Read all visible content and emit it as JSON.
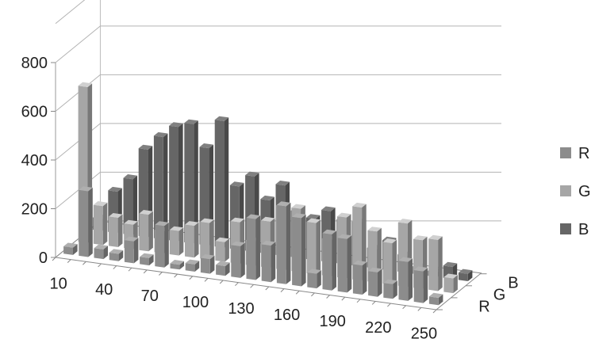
{
  "chart_data": {
    "type": "bar",
    "variant": "3d-bar",
    "title": "",
    "xlabel": "",
    "ylabel": "",
    "ylim": [
      0,
      800
    ],
    "y_ticks": [
      0,
      200,
      400,
      600,
      800
    ],
    "x_tick_labels": [
      "10",
      "40",
      "70",
      "100",
      "130",
      "160",
      "190",
      "220",
      "250"
    ],
    "categories": [
      "10",
      "20",
      "30",
      "40",
      "50",
      "60",
      "70",
      "80",
      "90",
      "100",
      "110",
      "120",
      "130",
      "140",
      "150",
      "160",
      "170",
      "180",
      "190",
      "200",
      "210",
      "220",
      "230",
      "240",
      "250"
    ],
    "depth_labels": [
      "R",
      "G",
      "B"
    ],
    "grid": true,
    "legend_position": "right",
    "series": [
      {
        "name": "R",
        "color": "#8c8c8c",
        "values": [
          30,
          270,
          40,
          30,
          90,
          30,
          170,
          20,
          30,
          60,
          40,
          130,
          250,
          150,
          320,
          280,
          60,
          230,
          220,
          120,
          100,
          60,
          160,
          130,
          30
        ]
      },
      {
        "name": "G",
        "color": "#a6a6a6",
        "values": [
          640,
          160,
          120,
          100,
          150,
          90,
          100,
          130,
          150,
          80,
          170,
          100,
          190,
          260,
          260,
          210,
          150,
          250,
          300,
          210,
          170,
          260,
          200,
          210,
          60
        ]
      },
      {
        "name": "B",
        "color": "#666666",
        "values": [
          50,
          170,
          230,
          360,
          420,
          470,
          490,
          400,
          520,
          260,
          310,
          220,
          290,
          190,
          170,
          210,
          180,
          180,
          80,
          120,
          70,
          30,
          20,
          50,
          30
        ]
      }
    ]
  }
}
